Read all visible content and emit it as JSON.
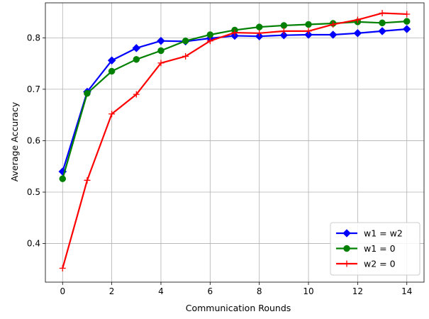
{
  "chart_data": {
    "type": "line",
    "title": "",
    "xlabel": "Communication Rounds",
    "ylabel": "Average Accuracy",
    "xlim": [
      -0.7,
      14.7
    ],
    "ylim": [
      0.325,
      0.868
    ],
    "xticks": [
      0,
      2,
      4,
      6,
      8,
      10,
      12,
      14
    ],
    "xtick_labels": [
      "0",
      "2",
      "4",
      "6",
      "8",
      "10",
      "12",
      "14"
    ],
    "yticks": [
      0.4,
      0.5,
      0.6,
      0.7,
      0.8
    ],
    "ytick_labels": [
      "0.4",
      "0.5",
      "0.6",
      "0.7",
      "0.8"
    ],
    "grid": true,
    "legend_position": "lower-right",
    "x": [
      0,
      1,
      2,
      3,
      4,
      5,
      6,
      7,
      8,
      9,
      10,
      11,
      12,
      13,
      14
    ],
    "series": [
      {
        "name": " w1 = w2",
        "color": "#0000ff",
        "marker": "diamond",
        "values": [
          0.54,
          0.695,
          0.756,
          0.78,
          0.794,
          0.793,
          0.799,
          0.804,
          0.803,
          0.805,
          0.806,
          0.806,
          0.809,
          0.813,
          0.817
        ]
      },
      {
        "name": "w1 = 0",
        "color": "#008000",
        "marker": "circle",
        "values": [
          0.526,
          0.692,
          0.735,
          0.758,
          0.775,
          0.794,
          0.806,
          0.815,
          0.821,
          0.824,
          0.826,
          0.828,
          0.831,
          0.829,
          0.832
        ]
      },
      {
        "name": "w2 = 0",
        "color": "#ff0000",
        "marker": "plus",
        "values": [
          0.352,
          0.523,
          0.652,
          0.69,
          0.751,
          0.764,
          0.794,
          0.81,
          0.809,
          0.813,
          0.813,
          0.826,
          0.835,
          0.848,
          0.846
        ]
      }
    ]
  }
}
